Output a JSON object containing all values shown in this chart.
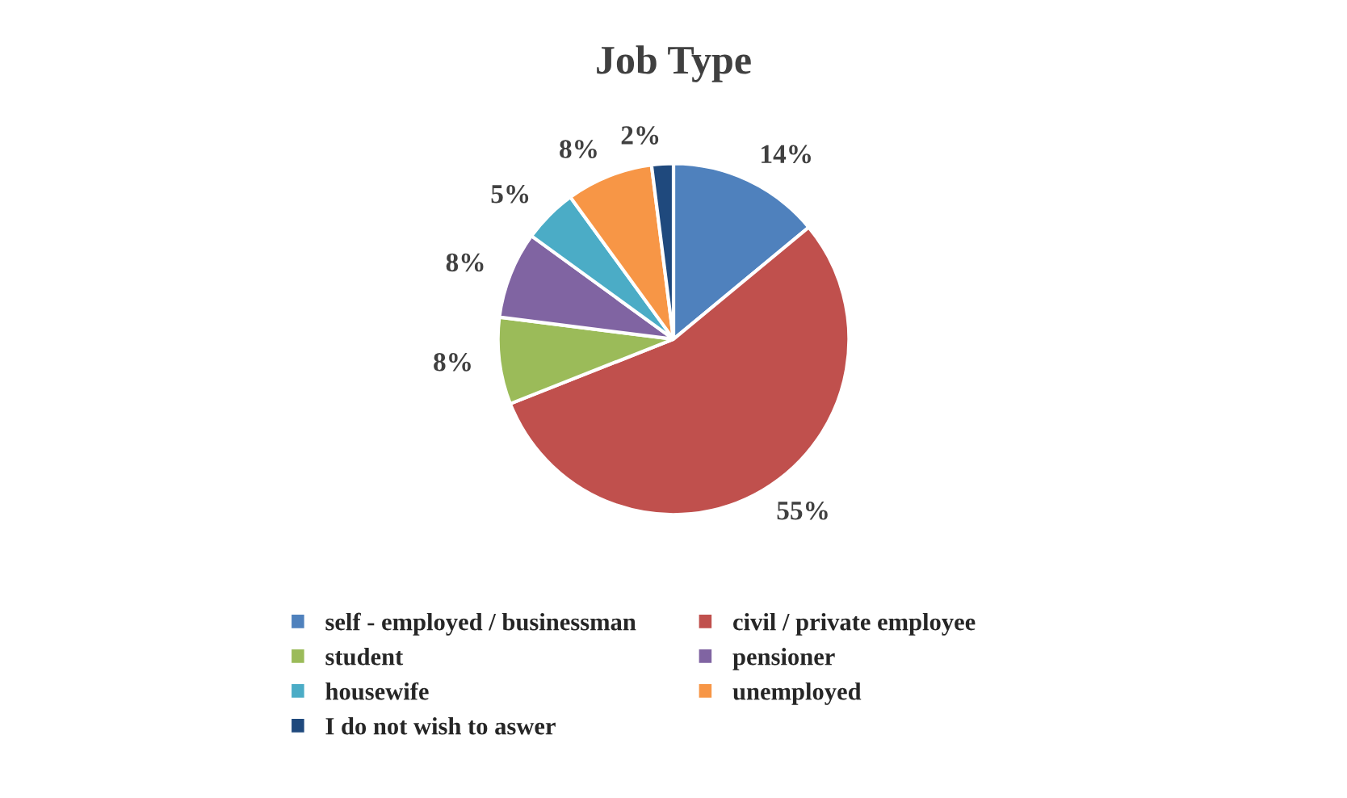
{
  "chart_data": {
    "type": "pie",
    "title": "Job Type",
    "categories": [
      "self - employed / businessman",
      "civil / private employee",
      "student",
      "pensioner",
      "housewife",
      "unemployed",
      "I do not wish to aswer"
    ],
    "values": [
      14,
      55,
      8,
      8,
      5,
      8,
      2
    ],
    "colors": [
      "#4f81bd",
      "#c0504d",
      "#9bbb59",
      "#8064a2",
      "#4bacc6",
      "#f79646",
      "#1f497d"
    ],
    "value_labels": [
      "14%",
      "55%",
      "8%",
      "8%",
      "5%",
      "8%",
      "2%"
    ],
    "legend": "bottom"
  }
}
